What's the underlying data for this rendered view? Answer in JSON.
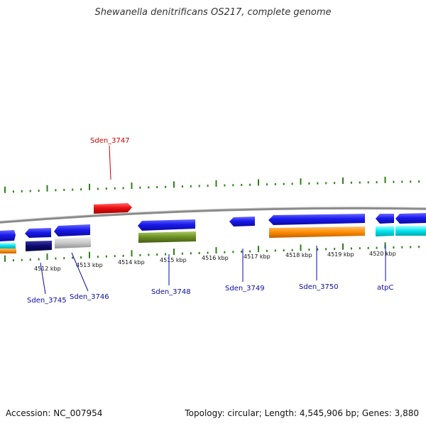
{
  "title": "Shewanella denitrificans OS217, complete genome",
  "footer": {
    "accession": "Accession: NC_007954",
    "summary": "Topology: circular; Length: 4,545,906 bp; Genes: 3,880"
  },
  "colors": {
    "backbone": "#888888",
    "tick": "#2e7d1a",
    "forward_gene": "#1515e6",
    "highlight_gene": "#e60a0a",
    "label_blue": "#0a0aa8",
    "label_red": "#cc0000",
    "orange": "#ff8c00",
    "cyan": "#00e5ee",
    "navy": "#0a0a70",
    "light_gray": "#c8c8c8",
    "olive": "#6b8e23"
  },
  "scale_labels": [
    "4512 kbp",
    "4513 kbp",
    "4514 kbp",
    "4515 kbp",
    "4516 kbp",
    "4517 kbp",
    "4518 kbp",
    "4519 kbp",
    "4520 kbp"
  ],
  "gene_labels": [
    {
      "text": "Sden_3747",
      "color": "red"
    },
    {
      "text": "Sden_3745",
      "color": "blue"
    },
    {
      "text": "Sden_3746",
      "color": "blue"
    },
    {
      "text": "Sden_3748",
      "color": "blue"
    },
    {
      "text": "Sden_3749",
      "color": "blue"
    },
    {
      "text": "Sden_3750",
      "color": "blue"
    },
    {
      "text": "atpC",
      "color": "blue"
    }
  ]
}
